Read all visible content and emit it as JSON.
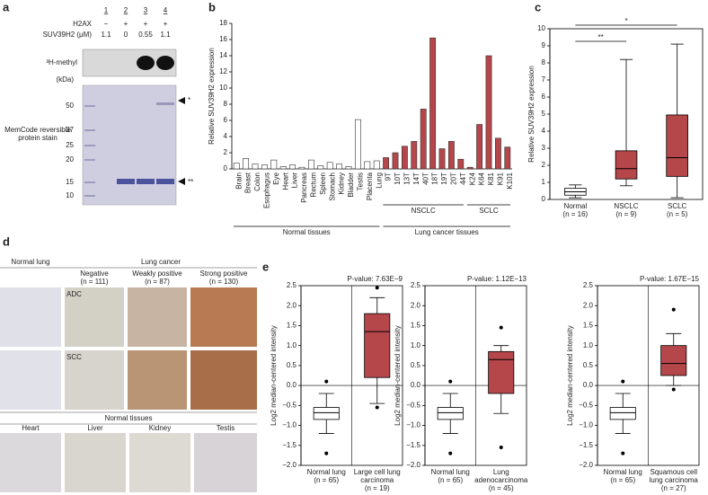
{
  "panel_a": {
    "label": "a",
    "lanes": [
      "1",
      "2",
      "3",
      "4"
    ],
    "rows": [
      {
        "name": "H2AX",
        "values": [
          "−",
          "+",
          "+",
          "+"
        ]
      },
      {
        "name": "SUV39H2 (µM)",
        "values": [
          "1.1",
          "0",
          "0.55",
          "1.1"
        ]
      }
    ],
    "autoradiograph": "³H-methyl",
    "kda": "(kDa)",
    "markers": [
      50,
      37,
      25,
      20,
      15,
      10
    ],
    "stain": "MemCode reversible protein stain",
    "bands": [
      "*",
      "**"
    ]
  },
  "panel_d": {
    "label": "d",
    "normal_lung": "Normal lung",
    "lung_cancer": "Lung cancer",
    "columns": [
      {
        "name": "Negative",
        "n": "(n = 111)"
      },
      {
        "name": "Weakly positive",
        "n": "(n = 87)"
      },
      {
        "name": "Strong positive",
        "n": "(n = 130)"
      }
    ],
    "rows": [
      "ADC",
      "SCC"
    ],
    "normal_tissues": "Normal tissues",
    "tissues": [
      "Heart",
      "Liver",
      "Kidney",
      "Testis"
    ]
  },
  "chart_data": [
    {
      "type": "bar",
      "panel": "b",
      "ylabel": "Relative SUV39H2 expression",
      "categories": [
        "Brain",
        "Breast",
        "Colon",
        "Esophagus",
        "Eye",
        "Heart",
        "Liver",
        "Pancreas",
        "Rectum",
        "Spleen",
        "Stomach",
        "Kidney",
        "Bladder",
        "Testis",
        "Placenta",
        "Lung",
        "9T",
        "10T",
        "13T",
        "14T",
        "40T",
        "18T",
        "19T",
        "20T",
        "44T",
        "K24",
        "K64",
        "K81",
        "K91",
        "K101"
      ],
      "values": [
        0.7,
        1.3,
        0.6,
        0.5,
        1.1,
        0.3,
        0.5,
        0.2,
        1.1,
        0.4,
        0.8,
        0.6,
        0.3,
        6.1,
        0.9,
        1.0,
        1.4,
        2.0,
        2.8,
        3.4,
        7.4,
        16.2,
        2.5,
        3.4,
        1.2,
        0.2,
        5.5,
        14.0,
        3.8,
        2.7
      ],
      "colors": [
        "#ffffff",
        "#ffffff",
        "#ffffff",
        "#ffffff",
        "#ffffff",
        "#ffffff",
        "#ffffff",
        "#ffffff",
        "#ffffff",
        "#ffffff",
        "#ffffff",
        "#ffffff",
        "#ffffff",
        "#ffffff",
        "#ffffff",
        "#ffffff",
        "#b5464a",
        "#b5464a",
        "#b5464a",
        "#b5464a",
        "#b5464a",
        "#b5464a",
        "#b5464a",
        "#b5464a",
        "#b5464a",
        "#b5464a",
        "#b5464a",
        "#b5464a",
        "#b5464a",
        "#b5464a"
      ],
      "group_labels": [
        "Normal tissues",
        "NSCLC",
        "SCLC",
        "Lung cancer tissues"
      ],
      "ylim": [
        0,
        18
      ],
      "yticks": [
        0,
        2,
        4,
        6,
        8,
        10,
        12,
        14,
        16,
        18
      ]
    },
    {
      "type": "box",
      "panel": "c",
      "ylabel": "Relative SUV39H2 expression",
      "frame": true,
      "categories": [
        "Normal",
        "NSCLC",
        "SCLC"
      ],
      "n_labels": [
        "(n = 16)",
        "(n = 9)",
        "(n = 5)"
      ],
      "boxes": [
        {
          "min": 0.1,
          "q1": 0.25,
          "median": 0.45,
          "q3": 0.65,
          "max": 0.85,
          "outliers": [],
          "color": "#ffffff"
        },
        {
          "min": 0.8,
          "q1": 1.2,
          "median": 1.8,
          "q3": 2.85,
          "max": 8.2,
          "outliers": [],
          "color": "#b5464a"
        },
        {
          "min": 0.1,
          "q1": 1.35,
          "median": 2.45,
          "q3": 4.95,
          "max": 9.1,
          "outliers": [],
          "color": "#b5464a"
        }
      ],
      "significance_labels": [
        "**",
        "*"
      ],
      "ylim": [
        0,
        10
      ],
      "yticks": [
        0,
        1,
        2,
        3,
        4,
        5,
        6,
        7,
        8,
        9,
        10
      ]
    },
    {
      "type": "box",
      "panel": "e",
      "ylabel": "Log2 median-centered intensity",
      "frame": true,
      "zero_line": true,
      "divider": true,
      "pvalue": "P-value: 7.63E−9",
      "categories": [
        "Normal lung",
        "Large cell lung carcinoma"
      ],
      "n_labels": [
        "(n = 65)",
        "(n = 19)"
      ],
      "boxes": [
        {
          "min": -1.2,
          "q1": -0.85,
          "median": -0.68,
          "q3": -0.55,
          "max": -0.2,
          "outliers": [
            0.1,
            -1.7
          ],
          "color": "#ffffff"
        },
        {
          "min": -0.45,
          "q1": 0.2,
          "median": 1.35,
          "q3": 1.8,
          "max": 2.2,
          "outliers": [
            2.45,
            -0.55
          ],
          "color": "#b5464a"
        }
      ],
      "ylim": [
        -2,
        2.5
      ],
      "yticks": [
        {
          "value": -2,
          "label": "−2.0"
        },
        {
          "value": -1.5,
          "label": "−1.5"
        },
        {
          "value": -1,
          "label": "−1.0"
        },
        {
          "value": -0.5,
          "label": "−0.5"
        },
        {
          "value": 0,
          "label": "0.0"
        },
        0.5,
        {
          "value": 1,
          "label": "1.0"
        },
        1.5,
        {
          "value": 2,
          "label": "2.0"
        },
        2.5
      ]
    },
    {
      "type": "box",
      "ylabel": "Log2 median-centered intensity",
      "frame": true,
      "zero_line": true,
      "divider": true,
      "pvalue": "P-value: 1.12E−13",
      "categories": [
        "Normal lung",
        "Lung adenocarcinoma"
      ],
      "n_labels": [
        "(n = 65)",
        "(n = 45)"
      ],
      "boxes": [
        {
          "min": -1.2,
          "q1": -0.85,
          "median": -0.68,
          "q3": -0.55,
          "max": -0.2,
          "outliers": [
            0.1,
            -1.7
          ],
          "color": "#ffffff"
        },
        {
          "min": -0.7,
          "q1": -0.2,
          "median": 0.65,
          "q3": 0.85,
          "max": 1.0,
          "outliers": [
            1.45,
            -1.55
          ],
          "color": "#b5464a"
        }
      ],
      "ylim": [
        -2,
        2.5
      ],
      "yticks": [
        {
          "value": -2,
          "label": "−2.0"
        },
        {
          "value": -1.5,
          "label": "−1.5"
        },
        {
          "value": -1,
          "label": "−1.0"
        },
        {
          "value": -0.5,
          "label": "−0.5"
        },
        {
          "value": 0,
          "label": "0.0"
        },
        0.5,
        {
          "value": 1,
          "label": "1.0"
        },
        1.5,
        {
          "value": 2,
          "label": "2.0"
        },
        2.5
      ]
    },
    {
      "type": "box",
      "ylabel": "Log2 median-centered intensity",
      "frame": true,
      "zero_line": true,
      "divider": true,
      "pvalue": "P-value: 1.67E−15",
      "categories": [
        "Normal lung",
        "Squamous cell lung carcinoma"
      ],
      "n_labels": [
        "(n = 65)",
        "(n = 27)"
      ],
      "boxes": [
        {
          "min": -1.2,
          "q1": -0.85,
          "median": -0.68,
          "q3": -0.55,
          "max": -0.2,
          "outliers": [
            0.1,
            -1.7
          ],
          "color": "#ffffff"
        },
        {
          "min": 0.0,
          "q1": 0.25,
          "median": 0.55,
          "q3": 1.0,
          "max": 1.3,
          "outliers": [
            1.9,
            -0.1
          ],
          "color": "#b5464a"
        }
      ],
      "ylim": [
        -2,
        2.5
      ],
      "yticks": [
        {
          "value": -2,
          "label": "−2.0"
        },
        {
          "value": -1.5,
          "label": "−1.5"
        },
        {
          "value": -1,
          "label": "−1.0"
        },
        {
          "value": -0.5,
          "label": "−0.5"
        },
        {
          "value": 0,
          "label": "0.0"
        },
        0.5,
        {
          "value": 1,
          "label": "1.0"
        },
        1.5,
        {
          "value": 2,
          "label": "2.0"
        },
        2.5
      ]
    }
  ]
}
